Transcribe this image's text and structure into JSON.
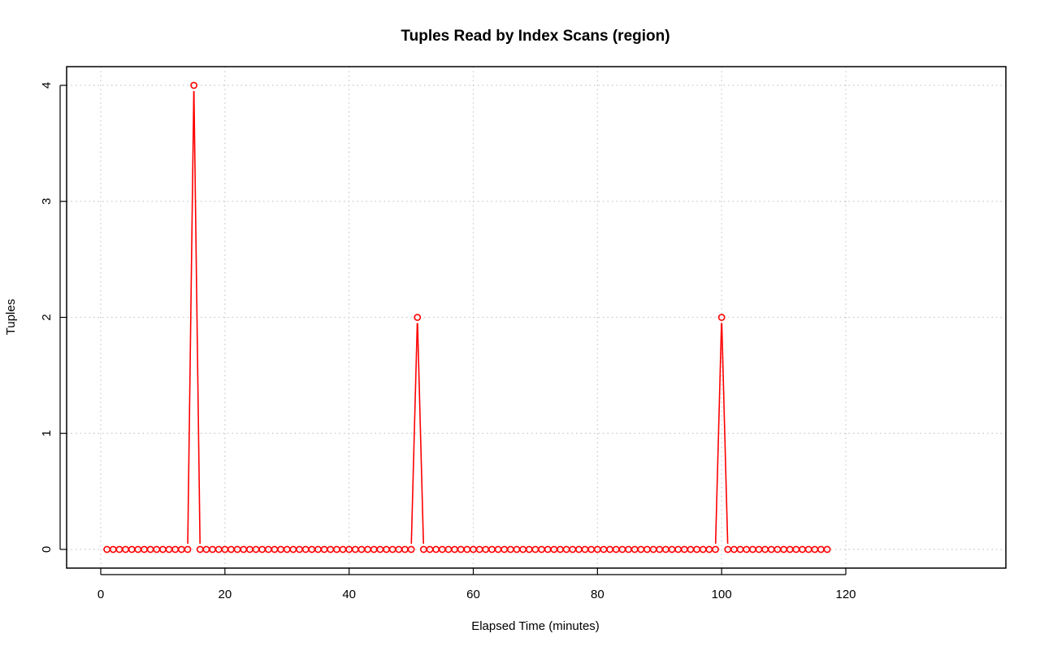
{
  "chart_data": {
    "type": "line",
    "title": "Tuples Read by Index Scans (region)",
    "xlabel": "Elapsed Time (minutes)",
    "ylabel": "Tuples",
    "xlim": [
      0,
      120
    ],
    "ylim": [
      0,
      4
    ],
    "x_ticks": [
      "0",
      "20",
      "40",
      "60",
      "80",
      "100",
      "120"
    ],
    "y_ticks": [
      "0",
      "1",
      "2",
      "3",
      "4"
    ],
    "grid": true,
    "legend": "none",
    "series_color": "#ff0000",
    "series": [
      {
        "x_start": 1,
        "x_step": 1,
        "values": [
          0,
          0,
          0,
          0,
          0,
          0,
          0,
          0,
          0,
          0,
          0,
          0,
          0,
          0,
          4,
          0,
          0,
          0,
          0,
          0,
          0,
          0,
          0,
          0,
          0,
          0,
          0,
          0,
          0,
          0,
          0,
          0,
          0,
          0,
          0,
          0,
          0,
          0,
          0,
          0,
          0,
          0,
          0,
          0,
          0,
          0,
          0,
          0,
          0,
          0,
          2,
          0,
          0,
          0,
          0,
          0,
          0,
          0,
          0,
          0,
          0,
          0,
          0,
          0,
          0,
          0,
          0,
          0,
          0,
          0,
          0,
          0,
          0,
          0,
          0,
          0,
          0,
          0,
          0,
          0,
          0,
          0,
          0,
          0,
          0,
          0,
          0,
          0,
          0,
          0,
          0,
          0,
          0,
          0,
          0,
          0,
          0,
          0,
          0,
          2,
          0,
          0,
          0,
          0,
          0,
          0,
          0,
          0,
          0,
          0,
          0,
          0,
          0,
          0,
          0,
          0,
          0
        ]
      }
    ]
  }
}
